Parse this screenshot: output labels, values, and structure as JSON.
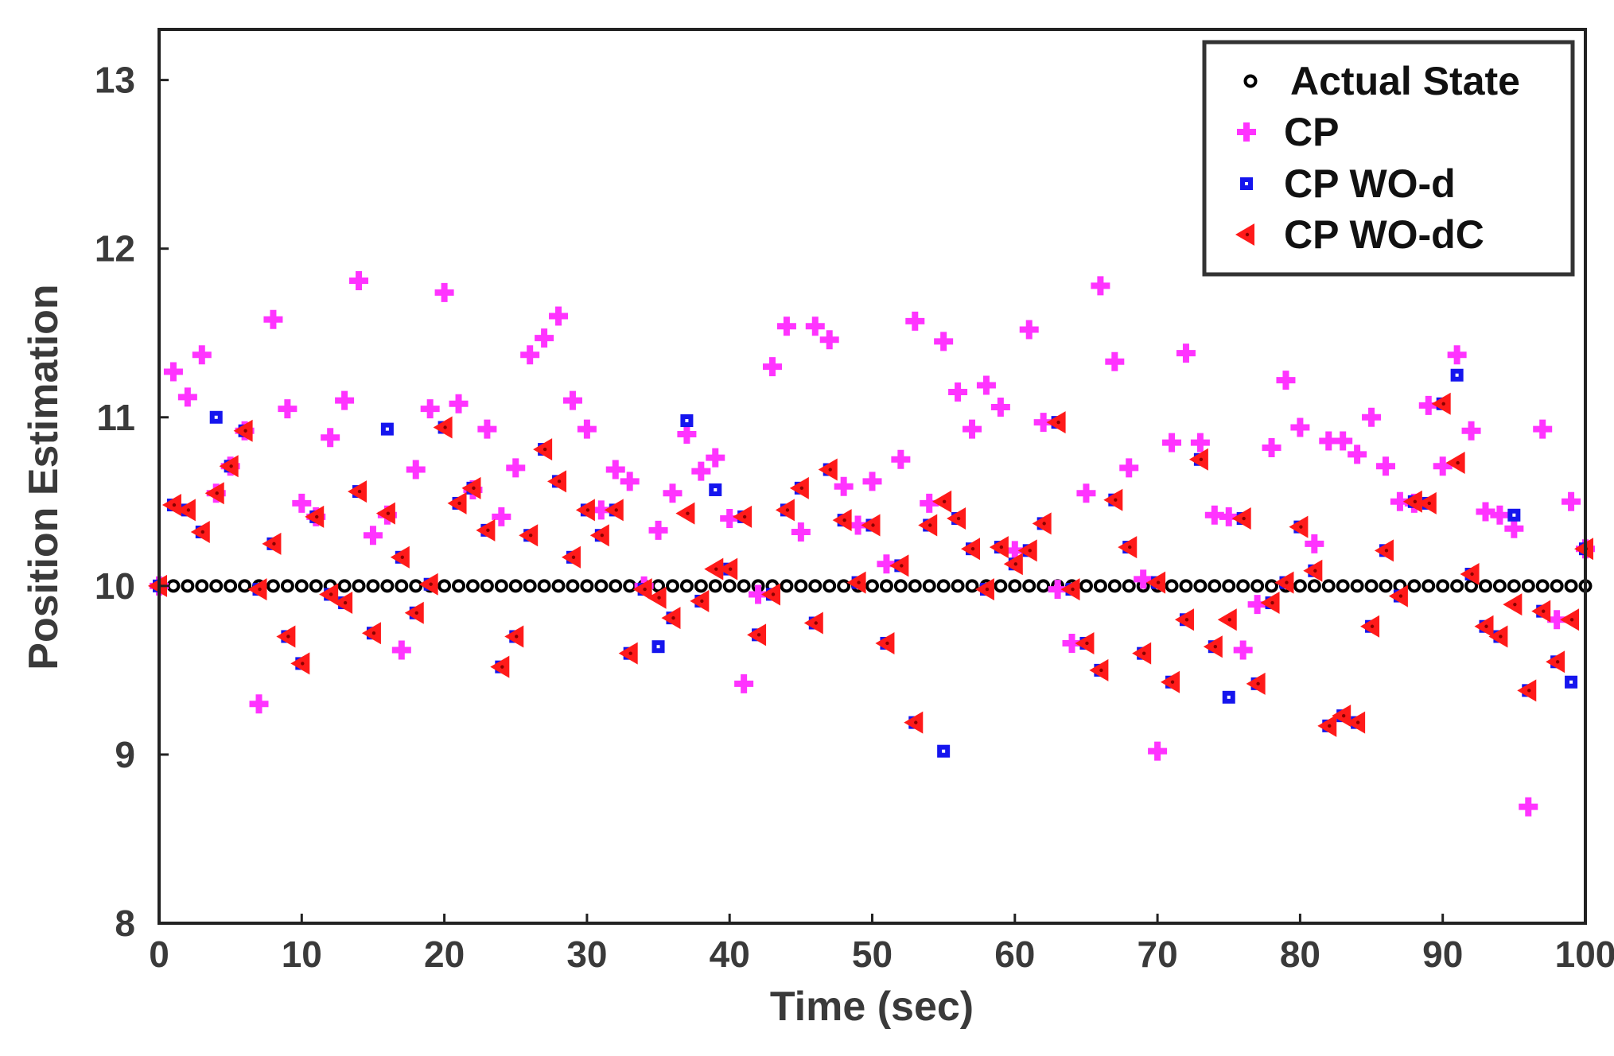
{
  "chart_data": {
    "type": "scatter",
    "title": "",
    "xlabel": "Time (sec)",
    "ylabel": "Position Estimation",
    "xlim": [
      0,
      100
    ],
    "ylim": [
      8,
      13.3
    ],
    "xticks": [
      0,
      10,
      20,
      30,
      40,
      50,
      60,
      70,
      80,
      90,
      100
    ],
    "yticks": [
      8,
      9,
      10,
      11,
      12,
      13
    ],
    "grid": false,
    "legend_position": "top-right",
    "series": [
      {
        "name": "Actual State",
        "marker": "circle",
        "color": "#000000",
        "x": [
          1,
          2,
          3,
          4,
          5,
          6,
          7,
          8,
          9,
          10,
          11,
          12,
          13,
          14,
          15,
          16,
          17,
          18,
          19,
          20,
          21,
          22,
          23,
          24,
          25,
          26,
          27,
          28,
          29,
          30,
          31,
          32,
          33,
          34,
          35,
          36,
          37,
          38,
          39,
          40,
          41,
          42,
          43,
          44,
          45,
          46,
          47,
          48,
          49,
          50,
          51,
          52,
          53,
          54,
          55,
          56,
          57,
          58,
          59,
          60,
          61,
          62,
          63,
          64,
          65,
          66,
          67,
          68,
          69,
          70,
          71,
          72,
          73,
          74,
          75,
          76,
          77,
          78,
          79,
          80,
          81,
          82,
          83,
          84,
          85,
          86,
          87,
          88,
          89,
          90,
          91,
          92,
          93,
          94,
          95,
          96,
          97,
          98,
          99,
          100
        ],
        "y": [
          10,
          10,
          10,
          10,
          10,
          10,
          10,
          10,
          10,
          10,
          10,
          10,
          10,
          10,
          10,
          10,
          10,
          10,
          10,
          10,
          10,
          10,
          10,
          10,
          10,
          10,
          10,
          10,
          10,
          10,
          10,
          10,
          10,
          10,
          10,
          10,
          10,
          10,
          10,
          10,
          10,
          10,
          10,
          10,
          10,
          10,
          10,
          10,
          10,
          10,
          10,
          10,
          10,
          10,
          10,
          10,
          10,
          10,
          10,
          10,
          10,
          10,
          10,
          10,
          10,
          10,
          10,
          10,
          10,
          10,
          10,
          10,
          10,
          10,
          10,
          10,
          10,
          10,
          10,
          10,
          10,
          10,
          10,
          10,
          10,
          10,
          10,
          10,
          10,
          10,
          10,
          10,
          10,
          10,
          10,
          10,
          10,
          10,
          10,
          10
        ]
      },
      {
        "name": "CP",
        "marker": "plus",
        "color": "#ff33ff",
        "x": [
          0,
          1,
          2,
          3,
          4,
          5,
          6,
          7,
          8,
          9,
          10,
          11,
          12,
          13,
          14,
          15,
          16,
          17,
          18,
          19,
          20,
          21,
          22,
          23,
          24,
          25,
          26,
          27,
          28,
          29,
          30,
          31,
          32,
          33,
          34,
          35,
          36,
          37,
          38,
          39,
          40,
          41,
          42,
          43,
          44,
          45,
          46,
          47,
          48,
          49,
          50,
          51,
          52,
          53,
          54,
          55,
          56,
          57,
          58,
          59,
          60,
          61,
          62,
          63,
          64,
          65,
          66,
          67,
          68,
          69,
          70,
          71,
          72,
          73,
          74,
          75,
          76,
          77,
          78,
          79,
          80,
          81,
          82,
          83,
          84,
          85,
          86,
          87,
          88,
          89,
          90,
          91,
          92,
          93,
          94,
          95,
          96,
          97,
          98,
          99,
          100
        ],
        "y": [
          10.0,
          11.27,
          11.12,
          11.37,
          10.55,
          10.71,
          10.92,
          9.3,
          11.58,
          11.05,
          10.49,
          10.41,
          10.88,
          11.1,
          11.81,
          10.3,
          10.42,
          9.62,
          10.69,
          11.05,
          11.74,
          11.08,
          10.57,
          10.93,
          10.41,
          10.7,
          11.37,
          11.47,
          11.6,
          11.1,
          10.93,
          10.45,
          10.69,
          10.62,
          10.0,
          10.33,
          10.55,
          10.9,
          10.68,
          10.76,
          10.4,
          9.42,
          9.95,
          11.3,
          11.54,
          10.32,
          11.54,
          11.46,
          10.59,
          10.36,
          10.62,
          10.13,
          10.75,
          11.57,
          10.49,
          11.45,
          11.15,
          10.93,
          11.19,
          11.06,
          10.21,
          11.52,
          10.97,
          9.98,
          9.66,
          10.55,
          11.78,
          11.33,
          10.7,
          10.04,
          9.02,
          10.85,
          11.38,
          10.85,
          10.42,
          10.41,
          9.62,
          9.89,
          10.82,
          11.22,
          10.94,
          10.25,
          10.86,
          10.86,
          10.78,
          11.0,
          10.71,
          10.5,
          10.49,
          11.07,
          10.71,
          11.37,
          10.92,
          10.44,
          10.42,
          10.34,
          8.69,
          10.93,
          9.8,
          10.5,
          10.22
        ]
      },
      {
        "name": "CP WO-d",
        "marker": "square",
        "color": "#1515ee",
        "x": [
          0,
          1,
          2,
          3,
          4,
          5,
          6,
          7,
          8,
          9,
          10,
          11,
          12,
          13,
          14,
          15,
          16,
          17,
          18,
          19,
          20,
          21,
          22,
          23,
          24,
          25,
          26,
          27,
          28,
          29,
          30,
          31,
          32,
          33,
          34,
          35,
          36,
          37,
          38,
          39,
          40,
          41,
          42,
          43,
          44,
          45,
          46,
          47,
          48,
          49,
          50,
          51,
          52,
          53,
          54,
          55,
          56,
          57,
          58,
          59,
          60,
          61,
          62,
          63,
          64,
          65,
          66,
          67,
          68,
          69,
          70,
          71,
          72,
          73,
          74,
          75,
          76,
          77,
          78,
          79,
          80,
          81,
          82,
          83,
          84,
          85,
          86,
          87,
          88,
          89,
          90,
          91,
          92,
          93,
          94,
          95,
          96,
          97,
          98,
          99,
          100
        ],
        "y": [
          10.0,
          10.48,
          10.45,
          10.32,
          11.0,
          10.71,
          10.92,
          9.98,
          10.25,
          9.7,
          9.54,
          10.41,
          9.95,
          9.9,
          10.56,
          9.72,
          10.93,
          10.17,
          9.84,
          10.01,
          10.94,
          10.49,
          10.58,
          10.33,
          9.52,
          9.7,
          10.3,
          10.81,
          10.62,
          10.17,
          10.45,
          10.3,
          10.45,
          9.6,
          9.98,
          9.64,
          9.81,
          10.98,
          9.91,
          10.57,
          10.1,
          10.41,
          9.71,
          9.95,
          10.45,
          10.58,
          9.78,
          10.69,
          10.39,
          10.02,
          10.36,
          9.66,
          10.12,
          9.19,
          10.36,
          9.02,
          10.4,
          10.22,
          9.98,
          10.23,
          10.13,
          10.21,
          10.37,
          10.97,
          9.98,
          9.66,
          9.5,
          10.51,
          10.23,
          9.6,
          10.02,
          9.43,
          9.8,
          10.75,
          9.64,
          9.34,
          10.4,
          9.42,
          9.9,
          10.02,
          10.35,
          10.09,
          9.17,
          9.23,
          9.19,
          9.76,
          10.21,
          9.94,
          10.5,
          10.49,
          11.08,
          11.25,
          10.07,
          9.76,
          9.7,
          10.42,
          9.38,
          9.85,
          9.55,
          9.43,
          10.22
        ]
      },
      {
        "name": "CP WO-dC",
        "marker": "triangle-left",
        "color": "#ff1a1a",
        "x": [
          0,
          1,
          2,
          3,
          4,
          5,
          6,
          7,
          8,
          9,
          10,
          11,
          12,
          13,
          14,
          15,
          16,
          17,
          18,
          19,
          20,
          21,
          22,
          23,
          24,
          25,
          26,
          27,
          28,
          29,
          30,
          31,
          32,
          33,
          34,
          35,
          36,
          37,
          38,
          39,
          40,
          41,
          42,
          43,
          44,
          45,
          46,
          47,
          48,
          49,
          50,
          51,
          52,
          53,
          54,
          55,
          56,
          57,
          58,
          59,
          60,
          61,
          62,
          63,
          64,
          65,
          66,
          67,
          68,
          69,
          70,
          71,
          72,
          73,
          74,
          75,
          76,
          77,
          78,
          79,
          80,
          81,
          82,
          83,
          84,
          85,
          86,
          87,
          88,
          89,
          90,
          91,
          92,
          93,
          94,
          95,
          96,
          97,
          98,
          99,
          100
        ],
        "y": [
          10.0,
          10.48,
          10.45,
          10.32,
          10.55,
          10.71,
          10.92,
          9.98,
          10.25,
          9.7,
          9.54,
          10.41,
          9.95,
          9.9,
          10.56,
          9.72,
          10.43,
          10.17,
          9.84,
          10.01,
          10.94,
          10.49,
          10.58,
          10.33,
          9.52,
          9.7,
          10.3,
          10.81,
          10.62,
          10.17,
          10.45,
          10.3,
          10.45,
          9.6,
          9.98,
          9.93,
          9.81,
          10.43,
          9.91,
          10.1,
          10.1,
          10.41,
          9.71,
          9.95,
          10.45,
          10.58,
          9.78,
          10.69,
          10.39,
          10.02,
          10.36,
          9.66,
          10.12,
          9.19,
          10.36,
          10.5,
          10.4,
          10.22,
          9.98,
          10.23,
          10.13,
          10.21,
          10.37,
          10.97,
          9.98,
          9.66,
          9.5,
          10.51,
          10.23,
          9.6,
          10.02,
          9.43,
          9.8,
          10.75,
          9.64,
          9.8,
          10.4,
          9.42,
          9.9,
          10.02,
          10.35,
          10.09,
          9.17,
          9.23,
          9.19,
          9.76,
          10.21,
          9.94,
          10.5,
          10.49,
          11.08,
          10.73,
          10.07,
          9.76,
          9.7,
          9.89,
          9.38,
          9.85,
          9.55,
          9.8,
          10.22
        ]
      }
    ]
  }
}
